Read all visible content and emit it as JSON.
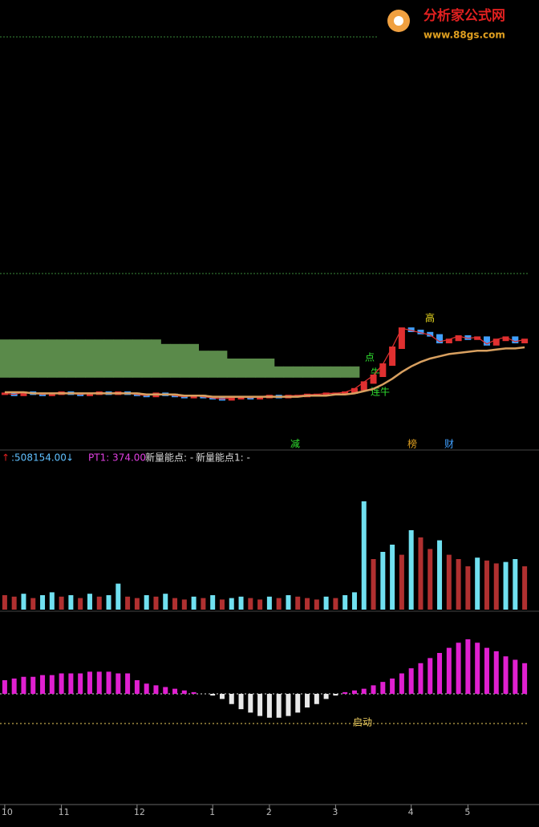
{
  "watermark": {
    "title": "分析家公式网",
    "url": "www.88gs.com"
  },
  "price_labels": [
    "点",
    "牛",
    "高",
    "连牛"
  ],
  "signal_labels": [
    "减",
    "榜",
    "财"
  ],
  "indicator_header": [
    ":508154.00",
    "PT1: 374.00",
    "新量能点: -",
    "新量能点1: -"
  ],
  "macd_label": "启动",
  "chart_data": [
    {
      "type": "price",
      "xlim": [
        0,
        56
      ],
      "ylim": [
        0,
        100
      ],
      "xticks": [
        {
          "value": 0,
          "label": "10"
        },
        {
          "value": 6,
          "label": "11"
        },
        {
          "value": 14,
          "label": "12"
        },
        {
          "value": 22,
          "label": "1"
        },
        {
          "value": 28,
          "label": "2"
        },
        {
          "value": 35,
          "label": "3"
        },
        {
          "value": 43,
          "label": "4"
        },
        {
          "value": 49,
          "label": "5"
        }
      ],
      "series": [
        {
          "color": "#e03030",
          "values": [
            14,
            13,
            15,
            14,
            13,
            14,
            15,
            14,
            13,
            14,
            15,
            14,
            15,
            14,
            13,
            12,
            14,
            13,
            12,
            11,
            12,
            11,
            10,
            9,
            10,
            11,
            10,
            11,
            12,
            11,
            12,
            12,
            13,
            13,
            14,
            14,
            15,
            18,
            24,
            30,
            40,
            55,
            72,
            70,
            68,
            66,
            60,
            62,
            65,
            63,
            64,
            58,
            62,
            64,
            60,
            62
          ]
        },
        {
          "color": "#d8a060",
          "values": [
            15,
            15,
            15,
            14,
            14,
            14,
            14,
            14,
            14,
            14,
            14,
            14,
            14,
            14,
            14,
            13,
            13,
            13,
            13,
            12,
            12,
            12,
            11,
            11,
            11,
            11,
            11,
            11,
            11,
            11,
            11,
            11,
            12,
            12,
            12,
            13,
            13,
            14,
            16,
            18,
            22,
            27,
            33,
            38,
            42,
            45,
            47,
            49,
            50,
            51,
            52,
            52,
            53,
            54,
            54,
            55
          ]
        },
        {
          "color": "#5a8a4a",
          "values": [
            62,
            62,
            62,
            62,
            62,
            62,
            62,
            62,
            62,
            62,
            62,
            62,
            62,
            62,
            62,
            62,
            62,
            58,
            58,
            58,
            58,
            52,
            52,
            52,
            45,
            45,
            45,
            45,
            45,
            38,
            38,
            38,
            38,
            38,
            38,
            38,
            38,
            38,
            null,
            null,
            null,
            null,
            null,
            null,
            null,
            null,
            null,
            null,
            null,
            null,
            null,
            null,
            null,
            null,
            null,
            null
          ]
        }
      ]
    },
    {
      "type": "volume",
      "xlim": [
        0,
        56
      ],
      "ylim": [
        0,
        100
      ],
      "color": "#b03030",
      "values": [
        10,
        9,
        11,
        8,
        10,
        12,
        9,
        10,
        8,
        11,
        9,
        10,
        18,
        9,
        8,
        10,
        9,
        11,
        8,
        7,
        9,
        8,
        10,
        7,
        8,
        9,
        8,
        7,
        9,
        8,
        10,
        9,
        8,
        7,
        9,
        8,
        10,
        12,
        75,
        35,
        40,
        45,
        38,
        55,
        50,
        42,
        48,
        38,
        35,
        30,
        36,
        34,
        32,
        33,
        35,
        30
      ]
    },
    {
      "type": "macd",
      "xlim": [
        0,
        56
      ],
      "ylim": [
        -40,
        40
      ],
      "color": "#e020d0",
      "values": [
        8,
        9,
        10,
        10,
        11,
        11,
        12,
        12,
        12,
        13,
        13,
        13,
        12,
        12,
        8,
        6,
        5,
        4,
        3,
        2,
        1,
        0,
        -1,
        -3,
        -6,
        -9,
        -11,
        -13,
        -14,
        -14,
        -13,
        -11,
        -8,
        -6,
        -3,
        -1,
        1,
        2,
        3,
        5,
        7,
        9,
        12,
        15,
        18,
        21,
        24,
        27,
        30,
        32,
        30,
        27,
        25,
        22,
        20,
        18
      ]
    }
  ]
}
